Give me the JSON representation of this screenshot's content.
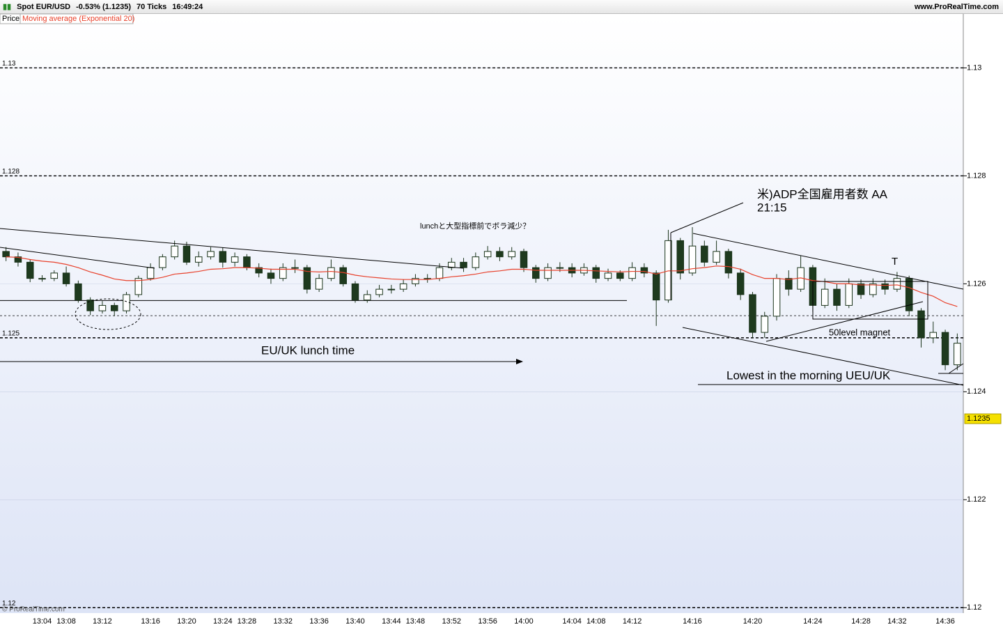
{
  "header": {
    "symbol": "Spot EUR/USD",
    "change": "-0.53% (1.1235)",
    "ticks": "70 Ticks",
    "time": "16:49:24",
    "site": "www.ProRealTime.com"
  },
  "legend": {
    "price": "Price",
    "indicator": "Moving average (Exponential 20)"
  },
  "copyright": "© ProRealTime.com",
  "annotations": {
    "adp": "米)ADP全国雇用者数 AA",
    "adp_time": "21:15",
    "lunch_note": "lunchと大型指標前でボラ減少？",
    "lunch_time": "EU/UK lunch time",
    "magnet": "50level magnet",
    "t_mark": "T",
    "lowest": "Lowest in the morning UEU/UK"
  },
  "chart_data": {
    "type": "candlestick",
    "ylim": [
      1.1199,
      1.131
    ],
    "yticks": [
      1.13,
      1.128,
      1.126,
      1.124,
      1.122,
      1.12
    ],
    "levels": [
      1.13,
      1.128,
      1.125,
      1.12
    ],
    "dotted_level": 1.12541,
    "support_level": 1.12569,
    "last_price": 1.1235,
    "up_color": "#ffffff",
    "down_color": "#1e3a1e",
    "edge_color": "#1a331a",
    "ma_color": "#e8402a",
    "categories": [
      null,
      null,
      null,
      "13:04",
      null,
      "13:08",
      null,
      null,
      "13:12",
      null,
      null,
      null,
      "13:16",
      null,
      null,
      "13:20",
      null,
      null,
      "13:24",
      null,
      "13:28",
      null,
      null,
      "13:32",
      null,
      null,
      "13:36",
      null,
      null,
      "13:40",
      null,
      null,
      "13:44",
      null,
      "13:48",
      null,
      null,
      "13:52",
      null,
      null,
      "13:56",
      null,
      null,
      "14:00",
      null,
      null,
      null,
      "14:04",
      null,
      "14:08",
      null,
      null,
      "14:12",
      null,
      null,
      null,
      null,
      "14:16",
      null,
      null,
      null,
      null,
      "14:20",
      null,
      null,
      null,
      null,
      "14:24",
      null,
      null,
      null,
      "14:28",
      null,
      null,
      "14:32",
      null,
      null,
      null,
      "14:36",
      null
    ],
    "open": [
      1.1266,
      1.1265,
      1.1264,
      1.1261,
      1.1261,
      1.1262,
      1.126,
      1.1257,
      1.1255,
      1.1256,
      1.1255,
      1.1258,
      1.1261,
      1.1263,
      1.1265,
      1.1267,
      1.1264,
      1.1265,
      1.1266,
      1.1264,
      1.1265,
      1.1263,
      1.1262,
      1.1261,
      1.1263,
      1.1263,
      1.1259,
      1.1261,
      1.1263,
      1.126,
      1.1257,
      1.1258,
      1.1259,
      1.1259,
      1.126,
      1.1261,
      1.1261,
      1.1263,
      1.1264,
      1.1263,
      1.1265,
      1.1266,
      1.1265,
      1.1266,
      1.1263,
      1.1261,
      1.1263,
      1.1263,
      1.1262,
      1.1263,
      1.1261,
      1.1262,
      1.1261,
      1.1263,
      1.1262,
      1.1257,
      1.1268,
      1.1262,
      1.1267,
      1.1264,
      1.1266,
      1.1262,
      1.1258,
      1.1251,
      1.1254,
      1.1261,
      1.1259,
      1.1263,
      1.1256,
      1.1259,
      1.1256,
      1.126,
      1.1258,
      1.126,
      1.1259,
      1.1261,
      1.1255,
      1.125,
      1.1251,
      1.1245
    ],
    "high": [
      1.12668,
      1.12658,
      1.12645,
      1.12616,
      1.12625,
      1.12632,
      1.12606,
      1.12575,
      1.12568,
      1.12565,
      1.12585,
      1.12615,
      1.12638,
      1.12655,
      1.1268,
      1.12678,
      1.1266,
      1.12668,
      1.12667,
      1.12658,
      1.12655,
      1.12638,
      1.12628,
      1.12638,
      1.12645,
      1.12635,
      1.12618,
      1.12645,
      1.12635,
      1.12605,
      1.12588,
      1.12598,
      1.12598,
      1.12608,
      1.12618,
      1.12618,
      1.12638,
      1.12648,
      1.12648,
      1.12658,
      1.1267,
      1.12668,
      1.12668,
      1.12665,
      1.12635,
      1.12638,
      1.1264,
      1.12638,
      1.12638,
      1.12635,
      1.12628,
      1.12625,
      1.1264,
      1.12638,
      1.12625,
      1.127,
      1.12685,
      1.12705,
      1.1268,
      1.1268,
      1.12665,
      1.12628,
      1.12585,
      1.12548,
      1.12618,
      1.12625,
      1.12652,
      1.12635,
      1.1261,
      1.126,
      1.1261,
      1.12608,
      1.1261,
      1.12608,
      1.12622,
      1.12615,
      1.12555,
      1.1253,
      1.12515,
      1.12508
    ],
    "low": [
      1.12642,
      1.12632,
      1.12603,
      1.12604,
      1.12605,
      1.12595,
      1.12565,
      1.12542,
      1.12545,
      1.1254,
      1.12545,
      1.12575,
      1.12606,
      1.12625,
      1.12645,
      1.12635,
      1.12632,
      1.12645,
      1.1263,
      1.12632,
      1.12625,
      1.12612,
      1.126,
      1.12605,
      1.1262,
      1.12582,
      1.12585,
      1.12605,
      1.12595,
      1.12565,
      1.12565,
      1.12575,
      1.12582,
      1.12585,
      1.12595,
      1.12602,
      1.12605,
      1.12625,
      1.12622,
      1.12625,
      1.12645,
      1.12642,
      1.12645,
      1.12622,
      1.12602,
      1.12605,
      1.12622,
      1.12612,
      1.12615,
      1.12602,
      1.12605,
      1.12605,
      1.12605,
      1.12612,
      1.12522,
      1.12565,
      1.12608,
      1.12615,
      1.12632,
      1.12635,
      1.1261,
      1.1257,
      1.125,
      1.125,
      1.12532,
      1.12578,
      1.12585,
      1.12548,
      1.12555,
      1.1255,
      1.12555,
      1.12572,
      1.12575,
      1.1258,
      1.12585,
      1.1254,
      1.12482,
      1.1249,
      1.1244,
      1.1244
    ],
    "close": [
      1.1265,
      1.1264,
      1.1261,
      1.1261,
      1.1262,
      1.126,
      1.1257,
      1.1255,
      1.1256,
      1.1255,
      1.1258,
      1.1261,
      1.1263,
      1.1265,
      1.1267,
      1.1264,
      1.1265,
      1.1266,
      1.1264,
      1.1265,
      1.1263,
      1.1262,
      1.1261,
      1.1263,
      1.1263,
      1.1259,
      1.1261,
      1.1263,
      1.126,
      1.1257,
      1.1258,
      1.1259,
      1.1259,
      1.126,
      1.1261,
      1.1261,
      1.1263,
      1.1264,
      1.1263,
      1.1265,
      1.1266,
      1.1265,
      1.1266,
      1.1263,
      1.1261,
      1.1263,
      1.1263,
      1.1262,
      1.1263,
      1.1261,
      1.1262,
      1.1261,
      1.1263,
      1.1262,
      1.1257,
      1.1268,
      1.1262,
      1.1267,
      1.1264,
      1.1266,
      1.1262,
      1.1258,
      1.1251,
      1.1254,
      1.1261,
      1.1259,
      1.1263,
      1.1256,
      1.1259,
      1.1256,
      1.126,
      1.1258,
      1.126,
      1.1259,
      1.1261,
      1.1255,
      1.125,
      1.1251,
      1.1245,
      1.1249
    ],
    "ma": [
      1.1265,
      1.12649,
      1.12645,
      1.12642,
      1.1264,
      1.12636,
      1.1263,
      1.12622,
      1.12616,
      1.12609,
      1.12606,
      1.12606,
      1.12608,
      1.12612,
      1.12618,
      1.1262,
      1.12623,
      1.12627,
      1.12628,
      1.1263,
      1.1263,
      1.12629,
      1.12627,
      1.12627,
      1.12627,
      1.12623,
      1.12622,
      1.12623,
      1.12621,
      1.12616,
      1.12613,
      1.12611,
      1.12609,
      1.12608,
      1.12608,
      1.12608,
      1.1261,
      1.12613,
      1.12615,
      1.12618,
      1.12622,
      1.12624,
      1.12627,
      1.12627,
      1.12625,
      1.12625,
      1.12625,
      1.12625,
      1.12625,
      1.12624,
      1.12623,
      1.12622,
      1.12623,
      1.12623,
      1.12618,
      1.12624,
      1.12624,
      1.12628,
      1.1263,
      1.12633,
      1.12632,
      1.12627,
      1.12617,
      1.1261,
      1.1261,
      1.12608,
      1.12611,
      1.12606,
      1.12604,
      1.126,
      1.126,
      1.12598,
      1.12598,
      1.12597,
      1.12598,
      1.12593,
      1.12584,
      1.12577,
      1.12565,
      1.12558
    ]
  }
}
